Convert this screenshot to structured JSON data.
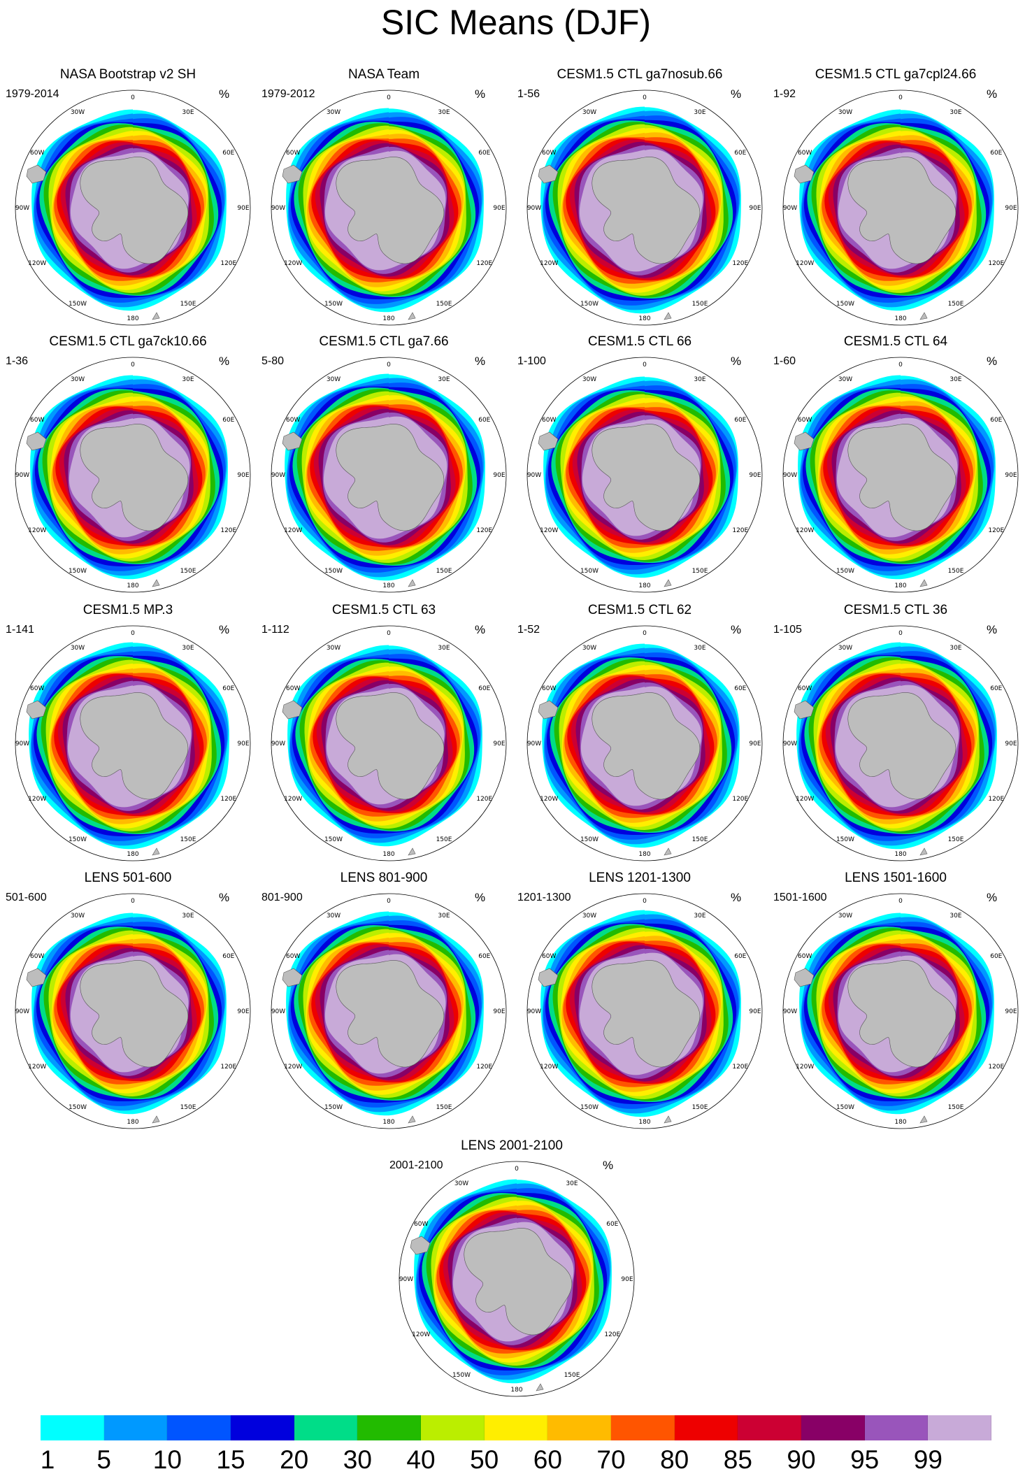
{
  "title": "SIC Means (DJF)",
  "unit": "%",
  "longitude_labels": [
    "0",
    "30E",
    "60E",
    "90E",
    "120E",
    "150E",
    "180",
    "150W",
    "120W",
    "90W",
    "60W",
    "30W"
  ],
  "panels": [
    {
      "title": "NASA Bootstrap v2 SH",
      "period": "1979-2014"
    },
    {
      "title": "NASA Team",
      "period": "1979-2012"
    },
    {
      "title": "CESM1.5 CTL ga7nosub.66",
      "period": "1-56"
    },
    {
      "title": "CESM1.5 CTL ga7cpl24.66",
      "period": "1-92"
    },
    {
      "title": "CESM1.5 CTL ga7ck10.66",
      "period": "1-36"
    },
    {
      "title": "CESM1.5 CTL ga7.66",
      "period": "5-80"
    },
    {
      "title": "CESM1.5 CTL 66",
      "period": "1-100"
    },
    {
      "title": "CESM1.5 CTL 64",
      "period": "1-60"
    },
    {
      "title": "CESM1.5 MP.3",
      "period": "1-141"
    },
    {
      "title": "CESM1.5 CTL 63",
      "period": "1-112"
    },
    {
      "title": "CESM1.5 CTL 62",
      "period": "1-52"
    },
    {
      "title": "CESM1.5 CTL 36",
      "period": "1-105"
    },
    {
      "title": "LENS 501-600",
      "period": "501-600"
    },
    {
      "title": "LENS 801-900",
      "period": "801-900"
    },
    {
      "title": "LENS 1201-1300",
      "period": "1201-1300"
    },
    {
      "title": "LENS 1501-1600",
      "period": "1501-1600"
    },
    {
      "title": "LENS 2001-2100",
      "period": "2001-2100"
    }
  ],
  "colorbar": {
    "labels": [
      "1",
      "5",
      "10",
      "15",
      "20",
      "30",
      "40",
      "50",
      "60",
      "70",
      "80",
      "85",
      "90",
      "95",
      "99"
    ],
    "colors": [
      "#00ffff",
      "#0099ff",
      "#0055ff",
      "#0000dd",
      "#00dd88",
      "#22bb00",
      "#bbee00",
      "#ffee00",
      "#ffbb00",
      "#ff5500",
      "#ee0000",
      "#cc0033",
      "#880066",
      "#9955bb",
      "#c8aad8"
    ]
  }
}
